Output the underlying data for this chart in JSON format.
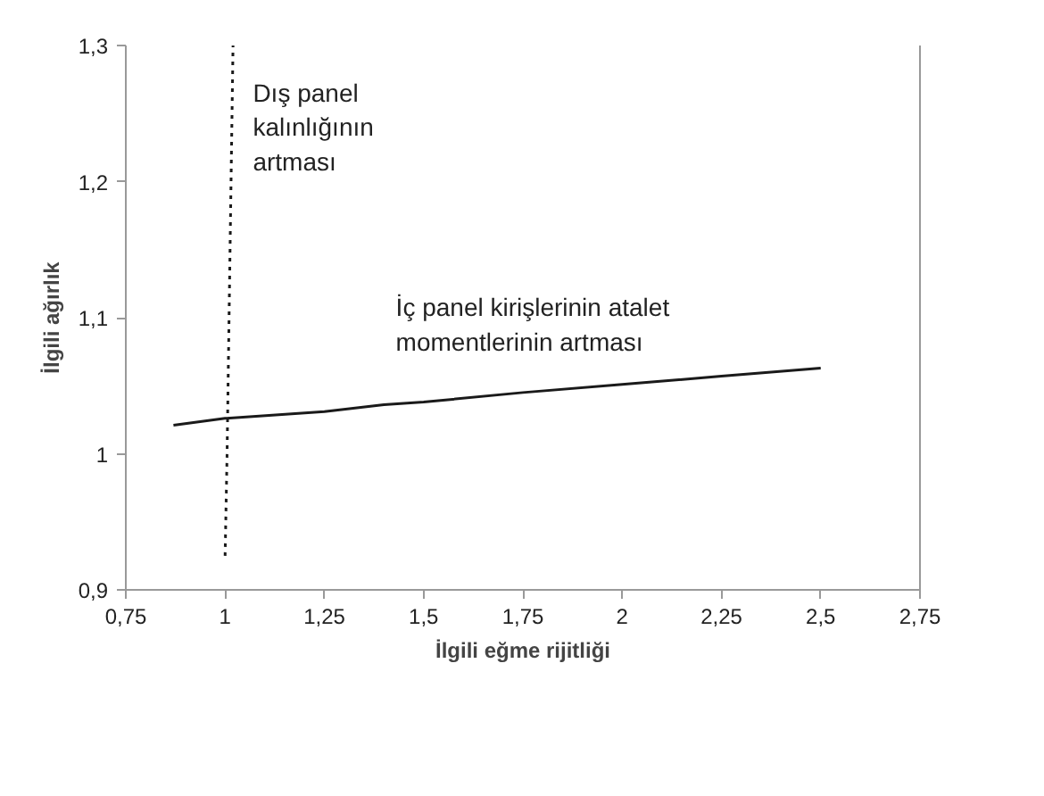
{
  "chart_data": {
    "type": "line",
    "xlabel": "İlgili eğme rijitliği",
    "ylabel": "İlgili ağırlık",
    "xlim": [
      0.75,
      2.75
    ],
    "ylim": [
      0.9,
      1.3
    ],
    "xticks": [
      {
        "value": 0.75,
        "label": "0,75"
      },
      1,
      {
        "value": 1.25,
        "label": "1,25"
      },
      {
        "value": 1.5,
        "label": "1,5"
      },
      {
        "value": 1.75,
        "label": "1,75"
      },
      2,
      {
        "value": 2.25,
        "label": "2,25"
      },
      {
        "value": 2.5,
        "label": "2,5"
      },
      {
        "value": 2.75,
        "label": "2,75"
      }
    ],
    "yticks": [
      {
        "value": 0.9,
        "label": "0,9"
      },
      1,
      {
        "value": 1.1,
        "label": "1,1"
      },
      {
        "value": 1.2,
        "label": "1,2"
      },
      {
        "value": 1.3,
        "label": "1,3"
      }
    ],
    "grid": false,
    "series": [
      {
        "color": "#1a1a1a",
        "line_style": "solid",
        "x": [
          0.87,
          1.0,
          1.25,
          1.4,
          1.5,
          1.75,
          2.0,
          2.25,
          2.5
        ],
        "values": [
          1.021,
          1.026,
          1.031,
          1.036,
          1.038,
          1.045,
          1.051,
          1.057,
          1.063
        ]
      },
      {
        "color": "#1a1a1a",
        "line_style": "dotted",
        "x": [
          1.0,
          1.005,
          1.01,
          1.015,
          1.02
        ],
        "values": [
          0.925,
          1.0,
          1.1,
          1.2,
          1.3
        ]
      }
    ],
    "annotations": [
      "Dış panel\nkalınlığının\nartması",
      "İç panel kirişlerinin atalet\nmomentlerinin artması"
    ]
  }
}
